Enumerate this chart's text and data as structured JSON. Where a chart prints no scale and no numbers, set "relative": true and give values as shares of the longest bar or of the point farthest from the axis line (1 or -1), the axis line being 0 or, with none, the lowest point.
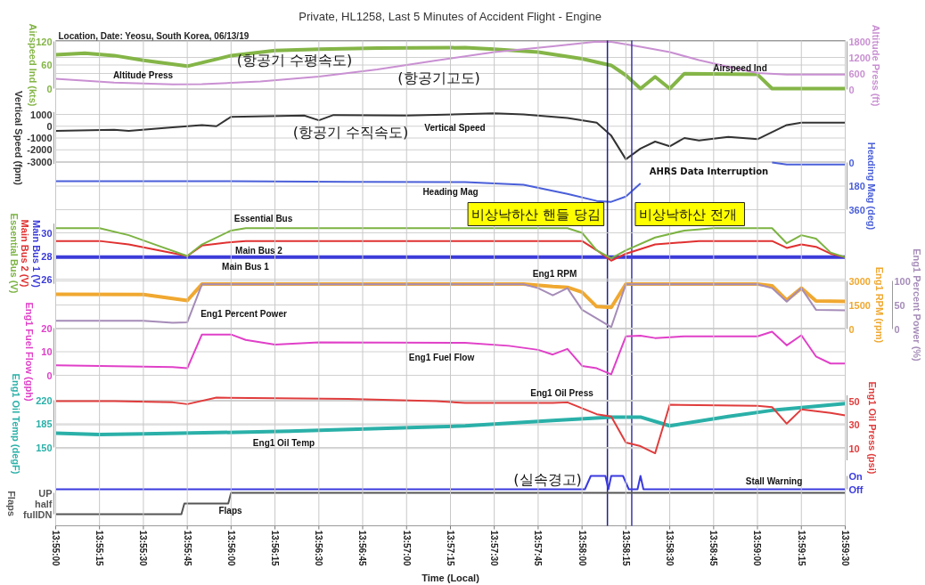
{
  "chart_data": [
    {
      "type": "line",
      "title": "Private, HL1258, Last 5 Minutes of Accident Flight - Engine",
      "subtitle": "Location, Date: Yeosu, South Korea, 06/13/19",
      "ylabel": "Airspeed Ind (kts)",
      "y2label": "Altitude Press (ft)",
      "xlim": [
        13.91667,
        13.99167
      ],
      "ylim": [
        0,
        120
      ],
      "yticks": [
        0,
        60,
        120
      ],
      "y2lim": [
        0,
        1800
      ],
      "y2ticks": [
        0,
        600,
        1200,
        1800
      ],
      "grid": true,
      "tick_labels": "y",
      "series": [
        {
          "name": "Airspeed Ind",
          "color": "#84b547",
          "x": [
            13.91667,
            13.91944,
            13.92222,
            13.925,
            13.92917,
            13.93333,
            13.9375,
            13.94167,
            13.94722,
            13.95556,
            13.95833,
            13.9625,
            13.96667,
            13.96944,
            13.97083,
            13.97222,
            13.97361,
            13.975,
            13.97639,
            13.98333,
            13.98472,
            13.99167
          ],
          "values": [
            86,
            90,
            84,
            72,
            57,
            84,
            97,
            100,
            103,
            104,
            100,
            93,
            76,
            59,
            34,
            0,
            30,
            0,
            38,
            36,
            0,
            0
          ]
        },
        {
          "name": "Altitude Press",
          "color": "#c990d2",
          "axis": "y2",
          "x": [
            13.91667,
            13.92222,
            13.92778,
            13.93056,
            13.93611,
            13.94167,
            13.94722,
            13.95278,
            13.95833,
            13.96389,
            13.96806,
            13.96944,
            13.97222,
            13.975,
            13.97778,
            13.98056,
            13.98333,
            13.98611,
            13.99167
          ],
          "values": [
            400,
            260,
            190,
            200,
            300,
            480,
            750,
            1080,
            1400,
            1620,
            1790,
            1780,
            1600,
            1400,
            1100,
            850,
            620,
            560,
            560
          ]
        }
      ],
      "annotations": [
        "(항공기 수평속도)",
        "(항공기고도)"
      ]
    },
    {
      "type": "line",
      "ylabel": "Vertical Speed (fpm)",
      "xlim": [
        13.91667,
        13.99167
      ],
      "ylim": [
        -3200,
        1200
      ],
      "yticks": [
        -3000,
        -2000,
        -1000,
        0,
        1000
      ],
      "grid": true,
      "tick_labels": "y",
      "series": [
        {
          "name": "Vertical Speed",
          "color": "#333333",
          "x": [
            13.91667,
            13.92222,
            13.92361,
            13.92778,
            13.93056,
            13.93194,
            13.93333,
            13.94028,
            13.94167,
            13.94306,
            13.95,
            13.95833,
            13.96111,
            13.96528,
            13.96806,
            13.96944,
            13.97083,
            13.97222,
            13.97361,
            13.975,
            13.97639,
            13.97778,
            13.98056,
            13.98333,
            13.98472,
            13.98611,
            13.9875,
            13.99167
          ],
          "values": [
            -400,
            -300,
            -400,
            -100,
            100,
            0,
            800,
            900,
            500,
            950,
            900,
            1100,
            1000,
            700,
            300,
            -800,
            -2800,
            -1900,
            -1300,
            -1700,
            -1000,
            -1200,
            -900,
            -1100,
            -500,
            100,
            300,
            300
          ]
        }
      ],
      "annotations": [
        "(항공기 수직속도)"
      ]
    },
    {
      "type": "line",
      "ylabel": "Heading Mag (deg)",
      "xlim": [
        13.91667,
        13.99167
      ],
      "ylim": [
        360,
        0
      ],
      "yticks": [
        0,
        180,
        360
      ],
      "grid": true,
      "tick_labels": "y",
      "series": [
        {
          "name": "Heading Mag",
          "color": "#4a5fd9",
          "x": [
            13.91667,
            13.93333,
            13.94444,
            13.95556,
            13.96111,
            13.96528,
            13.96806,
            13.96944,
            13.97083,
            13.97222,
            13.97917,
            13.98472,
            13.98611,
            13.99167
          ],
          "values": [
            143,
            143,
            147,
            150,
            170,
            240,
            293,
            300,
            260,
            160,
            null,
            0,
            15,
            15
          ]
        }
      ],
      "annotations": [
        "AHRS Data Interruption"
      ],
      "ref_lines": [
        {
          "axis": "x",
          "value": 13.96908,
          "label": "비상낙하산 핸들 당김",
          "color": "#22228a"
        },
        {
          "axis": "x",
          "value": 13.97139,
          "label": "비상낙하산  전개",
          "color": "#3a3aa8"
        }
      ]
    },
    {
      "type": "line",
      "ylabel": "Main Bus 1 (V)",
      "xlim": [
        13.91667,
        13.99167
      ],
      "ylim": [
        25.6,
        30.8
      ],
      "yticks": [
        26,
        28,
        30
      ],
      "grid": true,
      "tick_labels": "y",
      "series": [
        {
          "name": "Main Bus 1",
          "color": "#3b3bd9",
          "x": [
            13.91667,
            13.99167
          ],
          "values": [
            27.9,
            27.9
          ]
        },
        {
          "name": "Main Bus 2",
          "color": "#e03030",
          "x": [
            13.91667,
            13.92083,
            13.92361,
            13.92639,
            13.92917,
            13.93056,
            13.93333,
            13.93472,
            13.96667,
            13.96806,
            13.96944,
            13.97083,
            13.97361,
            13.97778,
            13.98472,
            13.98611,
            13.9875,
            13.98889,
            13.99028,
            13.99167
          ],
          "values": [
            29.3,
            29.3,
            29.0,
            28.5,
            28.0,
            28.9,
            29.2,
            29.3,
            29.3,
            28.5,
            27.6,
            28.2,
            29.0,
            29.3,
            29.3,
            28.7,
            29.0,
            28.8,
            28.2,
            27.9
          ]
        },
        {
          "name": "Essential Bus",
          "color": "#7cb342",
          "x": [
            13.91667,
            13.92083,
            13.92361,
            13.92639,
            13.92917,
            13.93056,
            13.93333,
            13.93472,
            13.96528,
            13.96667,
            13.96806,
            13.96944,
            13.97083,
            13.97361,
            13.97639,
            13.97917,
            13.98472,
            13.98611,
            13.9875,
            13.98889,
            13.99028,
            13.99167
          ],
          "values": [
            30.4,
            30.4,
            29.8,
            28.9,
            28.0,
            29.0,
            30.2,
            30.4,
            30.4,
            30.0,
            28.5,
            27.8,
            28.5,
            29.6,
            30.2,
            30.4,
            30.4,
            29.1,
            29.8,
            29.5,
            28.3,
            27.9
          ]
        }
      ],
      "annotations": [
        "Main Bus 2 (V)",
        "Essential Bus (V)"
      ]
    },
    {
      "type": "line",
      "ylabel": "Eng1 RPM (rpm)",
      "y2label": "Eng1 Percent Power (%)",
      "xlim": [
        13.91667,
        13.99167
      ],
      "ylim": [
        0,
        3000
      ],
      "yticks": [
        0,
        1500,
        3000
      ],
      "y2lim": [
        0,
        100
      ],
      "y2ticks": [
        0,
        50,
        100
      ],
      "grid": true,
      "tick_labels": "y",
      "series": [
        {
          "name": "Eng1 RPM",
          "color": "#f0a830",
          "x": [
            13.91667,
            13.925,
            13.92778,
            13.92917,
            13.93056,
            13.96111,
            13.96389,
            13.96528,
            13.96667,
            13.96806,
            13.96944,
            13.97083,
            13.98333,
            13.98472,
            13.98611,
            13.9875,
            13.98889,
            13.99167
          ],
          "values": [
            2170,
            2150,
            1900,
            1780,
            2800,
            2800,
            2650,
            2600,
            2300,
            1400,
            1350,
            2800,
            2800,
            2700,
            1800,
            2550,
            1750,
            1720
          ]
        },
        {
          "name": "Eng1 Percent Power",
          "color": "#a58cb8",
          "axis": "y2",
          "x": [
            13.91667,
            13.925,
            13.92778,
            13.92917,
            13.93056,
            13.96111,
            13.9625,
            13.96389,
            13.96528,
            13.96667,
            13.96806,
            13.96944,
            13.97083,
            13.98333,
            13.98472,
            13.98611,
            13.9875,
            13.98889,
            13.99167
          ],
          "values": [
            17,
            17,
            13,
            14,
            93,
            93,
            85,
            70,
            85,
            40,
            22,
            4,
            93,
            93,
            85,
            57,
            85,
            40,
            39
          ]
        }
      ]
    },
    {
      "type": "line",
      "ylabel": "Eng1 Fuel Flow (gph)",
      "xlim": [
        13.91667,
        13.99167
      ],
      "ylim": [
        0,
        20
      ],
      "yticks": [
        0,
        10,
        20
      ],
      "grid": true,
      "tick_labels": "y",
      "series": [
        {
          "name": "Eng1 Fuel Flow",
          "color": "#e040c8",
          "x": [
            13.91667,
            13.92778,
            13.92917,
            13.93056,
            13.93333,
            13.93472,
            13.9375,
            13.94167,
            13.95556,
            13.95972,
            13.9625,
            13.96389,
            13.96528,
            13.96667,
            13.96806,
            13.96944,
            13.97083,
            13.97222,
            13.97361,
            13.97639,
            13.98333,
            13.98472,
            13.98611,
            13.9875,
            13.98889,
            13.99028,
            13.99167
          ],
          "values": [
            4.2,
            3.5,
            3.0,
            17.3,
            17.3,
            15,
            13,
            14,
            13.8,
            12.5,
            10.8,
            8.8,
            11.2,
            4,
            3,
            0.4,
            16.5,
            16.8,
            15.8,
            16.5,
            16.5,
            18.5,
            12.7,
            17,
            8,
            5,
            5
          ]
        }
      ]
    },
    {
      "type": "line",
      "ylabel": "Eng1 Oil Temp (degF)",
      "y2label": "Eng1 Oil Press (psi)",
      "xlim": [
        13.91667,
        13.99167
      ],
      "ylim": [
        150,
        220
      ],
      "yticks": [
        150,
        185,
        220
      ],
      "y2lim": [
        0,
        55
      ],
      "y2ticks": [
        10,
        30,
        50
      ],
      "grid": true,
      "tick_labels": "y",
      "series": [
        {
          "name": "Eng1 Oil Temp",
          "color": "#2ab0a8",
          "x": [
            13.91667,
            13.92083,
            13.925,
            13.93889,
            13.95556,
            13.96389,
            13.96944,
            13.97222,
            13.975,
            13.98056,
            13.98472,
            13.99167
          ],
          "values": [
            171,
            169,
            170,
            174,
            182,
            190,
            195,
            195,
            182,
            196,
            205,
            215
          ]
        },
        {
          "name": "Eng1 Oil Press",
          "color": "#e03c3c",
          "axis": "y2",
          "x": [
            13.91667,
            13.92222,
            13.92778,
            13.92917,
            13.93194,
            13.94444,
            13.95278,
            13.95556,
            13.96389,
            13.96528,
            13.96806,
            13.96944,
            13.97083,
            13.97222,
            13.97361,
            13.975,
            13.98333,
            13.98472,
            13.98611,
            13.9875,
            13.99028,
            13.99167
          ],
          "values": [
            50,
            50,
            49,
            47.5,
            53,
            52,
            50,
            48.5,
            48.5,
            49,
            39,
            37,
            15,
            12,
            6,
            47,
            46,
            45,
            31,
            43,
            40,
            38
          ]
        }
      ]
    },
    {
      "type": "line",
      "xlim": [
        13.91667,
        13.99167
      ],
      "relative": true,
      "grid": true,
      "tick_labels": "y",
      "series": [
        {
          "name": "Stall Warning",
          "color": "#3a3ae0",
          "x": [
            13.91667,
            13.96694,
            13.9675,
            13.96889,
            13.96917,
            13.96944,
            13.97056,
            13.97111,
            13.97194,
            13.97222,
            13.9725,
            13.99167
          ],
          "values": [
            0,
            0,
            1,
            1,
            0,
            1,
            1,
            0,
            0,
            1,
            0,
            0
          ]
        }
      ],
      "annotations": [
        "(실속경고)",
        "On",
        "Off"
      ]
    },
    {
      "type": "line",
      "ylabel": "Flaps",
      "xlabel": "Time (Local)",
      "xlim": [
        13.91667,
        13.99167
      ],
      "relative": true,
      "grid": true,
      "annotations": [
        "UP",
        "half",
        "fullDN"
      ],
      "xticks": [
        {
          "value": 13.91667,
          "label": "13:55:00"
        },
        {
          "value": 13.92083,
          "label": "13:55:15"
        },
        {
          "value": 13.925,
          "label": "13:55:30"
        },
        {
          "value": 13.92917,
          "label": "13:55:45"
        },
        {
          "value": 13.93333,
          "label": "13:56:00"
        },
        {
          "value": 13.9375,
          "label": "13:56:15"
        },
        {
          "value": 13.94167,
          "label": "13:56:30"
        },
        {
          "value": 13.94583,
          "label": "13:56:45"
        },
        {
          "value": 13.95,
          "label": "13:57:00"
        },
        {
          "value": 13.95417,
          "label": "13:57:15"
        },
        {
          "value": 13.95833,
          "label": "13:57:30"
        },
        {
          "value": 13.9625,
          "label": "13:57:45"
        },
        {
          "value": 13.96667,
          "label": "13:58:00"
        },
        {
          "value": 13.97083,
          "label": "13:58:15"
        },
        {
          "value": 13.975,
          "label": "13:58:30"
        },
        {
          "value": 13.97917,
          "label": "13:58:45"
        },
        {
          "value": 13.98333,
          "label": "13:59:00"
        },
        {
          "value": 13.9875,
          "label": "13:59:15"
        },
        {
          "value": 13.99167,
          "label": "13:59:30"
        }
      ],
      "series": [
        {
          "name": "Flaps",
          "color": "#555555",
          "x": [
            13.91667,
            13.92861,
            13.92889,
            13.93306,
            13.93333,
            13.99167
          ],
          "values": [
            0,
            0,
            0.5,
            0.5,
            1,
            1
          ]
        }
      ]
    }
  ]
}
